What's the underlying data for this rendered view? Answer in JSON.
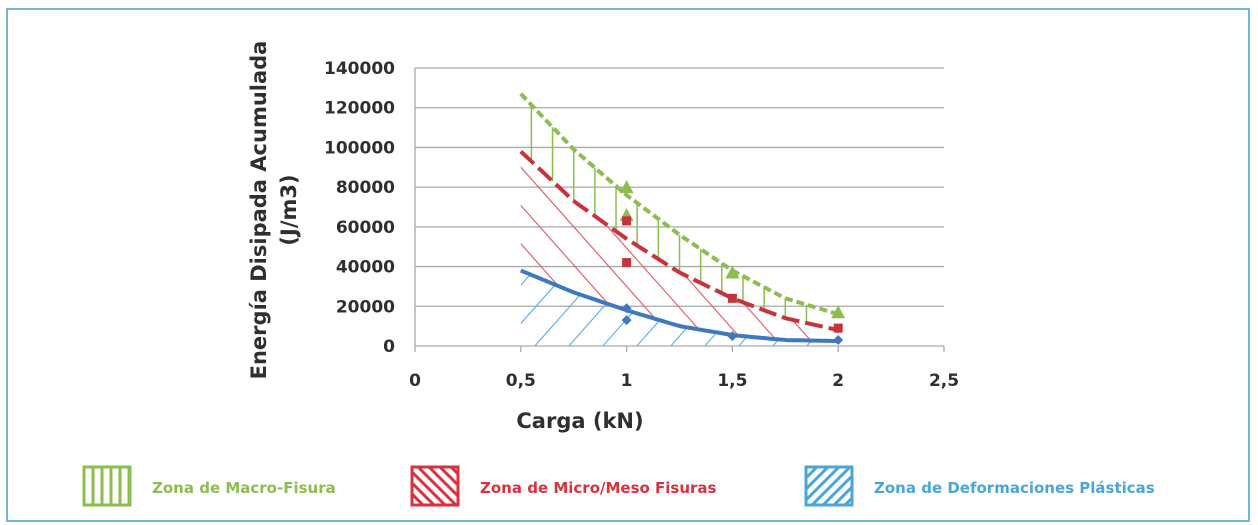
{
  "chart_data": {
    "type": "line",
    "xlabel": "Carga (kN)",
    "ylabel_lines": [
      "Energía Disipada Acumulada",
      "(J/m3)"
    ],
    "xlim": [
      0,
      2.5
    ],
    "ylim": [
      0,
      140000
    ],
    "x_ticks": [
      "0",
      "0,5",
      "1",
      "1,5",
      "2",
      "2,5"
    ],
    "x_tick_values": [
      0,
      0.5,
      1,
      1.5,
      2,
      2.5
    ],
    "y_ticks": [
      "0",
      "20000",
      "40000",
      "60000",
      "80000",
      "100000",
      "120000",
      "140000"
    ],
    "y_tick_values": [
      0,
      20000,
      40000,
      60000,
      80000,
      100000,
      120000,
      140000
    ],
    "grid": true,
    "series": [
      {
        "id": "macro",
        "color": "#8dbd4f",
        "marker": "triangle",
        "points": [
          [
            1,
            80000
          ],
          [
            1,
            66000
          ],
          [
            1.5,
            37000
          ],
          [
            2,
            17000
          ]
        ],
        "trend": [
          [
            0.5,
            127000
          ],
          [
            0.75,
            99000
          ],
          [
            1,
            76000
          ],
          [
            1.25,
            56000
          ],
          [
            1.5,
            38000
          ],
          [
            1.75,
            24000
          ],
          [
            2,
            16000
          ]
        ]
      },
      {
        "id": "micro",
        "color": "#c8323a",
        "marker": "square",
        "points": [
          [
            1,
            63000
          ],
          [
            1,
            42000
          ],
          [
            1.5,
            24000
          ],
          [
            2,
            9000
          ]
        ],
        "trend": [
          [
            0.5,
            98000
          ],
          [
            0.75,
            73000
          ],
          [
            1,
            54000
          ],
          [
            1.25,
            37000
          ],
          [
            1.5,
            24000
          ],
          [
            1.75,
            14000
          ],
          [
            2,
            8000
          ]
        ]
      },
      {
        "id": "plastic",
        "color": "#3f78bf",
        "marker": "diamond",
        "points": [
          [
            1,
            19000
          ],
          [
            1,
            13000
          ],
          [
            1.5,
            5000
          ],
          [
            2,
            3000
          ]
        ],
        "trend": [
          [
            0.5,
            38000
          ],
          [
            0.75,
            27000
          ],
          [
            1,
            18000
          ],
          [
            1.25,
            10000
          ],
          [
            1.5,
            5500
          ],
          [
            1.75,
            3000
          ],
          [
            2,
            2500
          ]
        ]
      }
    ]
  },
  "legend": [
    {
      "label": "Zona de Macro-Fisura",
      "color": "#8dbd4f",
      "pattern": "vertical"
    },
    {
      "label": "Zona de Micro/Meso Fisuras",
      "color": "#d9323f",
      "pattern": "diagonal-down"
    },
    {
      "label": "Zona de Deformaciones Plásticas",
      "color": "#4aa5d9",
      "pattern": "diagonal-up"
    }
  ]
}
